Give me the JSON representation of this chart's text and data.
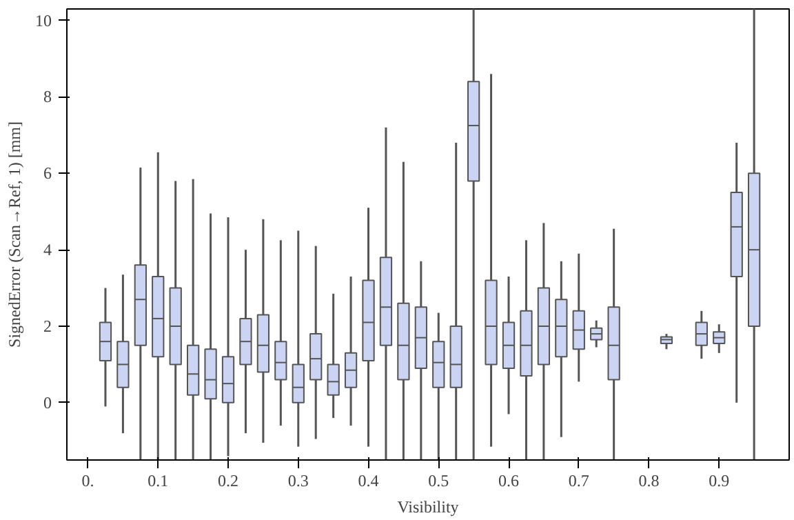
{
  "chart_data": {
    "type": "box",
    "xlabel": "Visibility",
    "ylabel": "SignedError (Scan→Ref, 1) [mm]",
    "color": "#ccd4f4",
    "x": [
      0.025,
      0.05,
      0.075,
      0.1,
      0.125,
      0.15,
      0.175,
      0.2,
      0.225,
      0.25,
      0.275,
      0.3,
      0.325,
      0.35,
      0.375,
      0.4,
      0.425,
      0.45,
      0.475,
      0.5,
      0.525,
      0.55,
      0.575,
      0.6,
      0.625,
      0.65,
      0.675,
      0.7,
      0.725,
      0.75,
      0.825,
      0.875,
      0.9,
      0.925,
      0.95
    ],
    "boxes": [
      {
        "low": -0.1,
        "q1": 1.1,
        "median": 1.6,
        "q3": 2.1,
        "high": 3.0
      },
      {
        "low": -0.8,
        "q1": 0.4,
        "median": 1.0,
        "q3": 1.6,
        "high": 3.35
      },
      {
        "low": -1.5,
        "q1": 1.5,
        "median": 2.7,
        "q3": 3.6,
        "high": 6.15
      },
      {
        "low": -1.5,
        "q1": 1.2,
        "median": 2.2,
        "q3": 3.3,
        "high": 6.55
      },
      {
        "low": -1.5,
        "q1": 1.0,
        "median": 2.0,
        "q3": 3.0,
        "high": 5.8
      },
      {
        "low": -1.5,
        "q1": 0.2,
        "median": 0.75,
        "q3": 1.5,
        "high": 5.85
      },
      {
        "low": -1.5,
        "q1": 0.1,
        "median": 0.6,
        "q3": 1.4,
        "high": 4.95
      },
      {
        "low": -1.4,
        "q1": 0.0,
        "median": 0.5,
        "q3": 1.2,
        "high": 4.85
      },
      {
        "low": -0.8,
        "q1": 1.0,
        "median": 1.6,
        "q3": 2.2,
        "high": 4.0
      },
      {
        "low": -1.05,
        "q1": 0.8,
        "median": 1.5,
        "q3": 2.3,
        "high": 4.8
      },
      {
        "low": -0.6,
        "q1": 0.6,
        "median": 1.05,
        "q3": 1.6,
        "high": 4.25
      },
      {
        "low": -1.15,
        "q1": 0.0,
        "median": 0.4,
        "q3": 1.0,
        "high": 4.5
      },
      {
        "low": -0.95,
        "q1": 0.6,
        "median": 1.15,
        "q3": 1.8,
        "high": 4.1
      },
      {
        "low": -0.4,
        "q1": 0.2,
        "median": 0.55,
        "q3": 1.0,
        "high": 2.85
      },
      {
        "low": -0.6,
        "q1": 0.4,
        "median": 0.85,
        "q3": 1.3,
        "high": 3.3
      },
      {
        "low": -1.15,
        "q1": 1.1,
        "median": 2.1,
        "q3": 3.2,
        "high": 5.1
      },
      {
        "low": -1.5,
        "q1": 1.5,
        "median": 2.5,
        "q3": 3.8,
        "high": 7.2
      },
      {
        "low": -1.5,
        "q1": 0.6,
        "median": 1.5,
        "q3": 2.6,
        "high": 6.3
      },
      {
        "low": -1.5,
        "q1": 0.9,
        "median": 1.7,
        "q3": 2.5,
        "high": 3.7
      },
      {
        "low": -1.5,
        "q1": 0.4,
        "median": 1.05,
        "q3": 1.6,
        "high": 2.35
      },
      {
        "low": -1.5,
        "q1": 0.4,
        "median": 1.0,
        "q3": 2.0,
        "high": 6.8
      },
      {
        "low": -1.5,
        "q1": 5.8,
        "median": 7.25,
        "q3": 8.4,
        "high": 10.3
      },
      {
        "low": -1.15,
        "q1": 1.0,
        "median": 2.0,
        "q3": 3.2,
        "high": 8.6
      },
      {
        "low": -0.3,
        "q1": 0.9,
        "median": 1.5,
        "q3": 2.1,
        "high": 3.3
      },
      {
        "low": -1.5,
        "q1": 0.7,
        "median": 1.5,
        "q3": 2.4,
        "high": 4.25
      },
      {
        "low": -1.5,
        "q1": 1.0,
        "median": 2.0,
        "q3": 3.0,
        "high": 4.7
      },
      {
        "low": -0.9,
        "q1": 1.2,
        "median": 2.0,
        "q3": 2.7,
        "high": 3.7
      },
      {
        "low": 0.55,
        "q1": 1.4,
        "median": 1.9,
        "q3": 2.4,
        "high": 3.9
      },
      {
        "low": 1.45,
        "q1": 1.65,
        "median": 1.8,
        "q3": 1.95,
        "high": 2.15
      },
      {
        "low": -1.5,
        "q1": 0.6,
        "median": 1.5,
        "q3": 2.5,
        "high": 4.55
      },
      {
        "low": 1.4,
        "q1": 1.55,
        "median": 1.65,
        "q3": 1.72,
        "high": 1.8
      },
      {
        "low": 1.15,
        "q1": 1.5,
        "median": 1.8,
        "q3": 2.1,
        "high": 2.4
      },
      {
        "low": 1.3,
        "q1": 1.55,
        "median": 1.7,
        "q3": 1.85,
        "high": 2.05
      },
      {
        "low": 0.0,
        "q1": 3.3,
        "median": 4.6,
        "q3": 5.5,
        "high": 6.8
      },
      {
        "low": -1.5,
        "q1": 2.0,
        "median": 4.0,
        "q3": 6.0,
        "high": 10.3
      }
    ],
    "xlim": [
      -0.03,
      1.0
    ],
    "xticks": [
      {
        "value": 0,
        "label": "0."
      },
      0.1,
      0.2,
      0.3,
      0.4,
      0.5,
      0.6,
      0.7,
      0.8,
      0.9
    ],
    "ylim": [
      -1.5,
      10.3
    ],
    "yticks": [
      0,
      2,
      4,
      6,
      8,
      10
    ]
  }
}
